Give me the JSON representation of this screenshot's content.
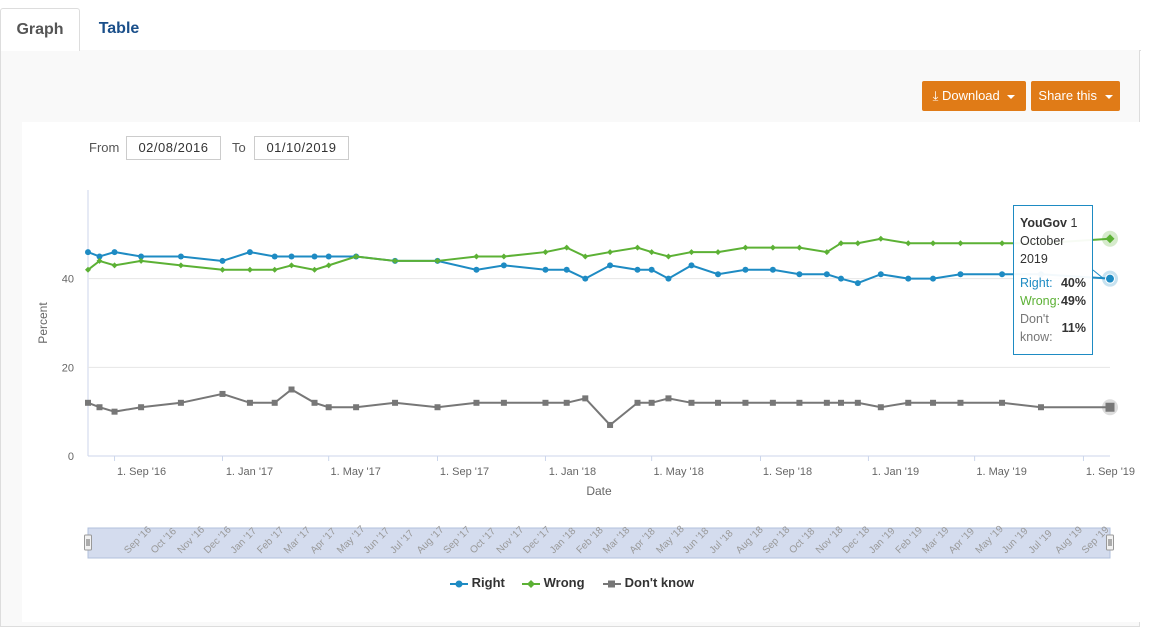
{
  "tabs": [
    {
      "label": "Graph"
    },
    {
      "label": "Table"
    }
  ],
  "toolbar": {
    "download_label": "Download",
    "share_label": "Share this"
  },
  "range": {
    "from_label": "From",
    "from_value": "02/08/2016",
    "to_label": "To",
    "to_value": "01/10/2019"
  },
  "tooltip": {
    "source": "YouGov",
    "date": "1 October 2019",
    "rows": [
      {
        "label": "Right:",
        "value": "40%",
        "color": "#1e8bc3"
      },
      {
        "label": "Wrong:",
        "value": "49%",
        "color": "#5cb135"
      },
      {
        "label": "Don't know:",
        "value": "11%",
        "color": "#777777"
      }
    ]
  },
  "navigator_labels": [
    "Sep '16",
    "Oct '16",
    "Nov '16",
    "Dec '16",
    "Jan '17",
    "Feb '17",
    "Mar '17",
    "Apr '17",
    "May '17",
    "Jun '17",
    "Jul '17",
    "Aug '17",
    "Sep '17",
    "Oct '17",
    "Nov '17",
    "Dec '17",
    "Jan '18",
    "Feb '18",
    "Mar '18",
    "Apr '18",
    "May '18",
    "Jun '18",
    "Jul '18",
    "Aug '18",
    "Sep '18",
    "Oct '18",
    "Nov '18",
    "Dec '18",
    "Jan '19",
    "Feb '19",
    "Mar '19",
    "Apr '19",
    "May '19",
    "Jun '19",
    "Jul '19",
    "Aug '19",
    "Sep '19"
  ],
  "chart_data": {
    "type": "line",
    "xlabel": "Date",
    "ylabel": "Percent",
    "ylim": [
      0,
      60
    ],
    "yticks": [
      0,
      20,
      40
    ],
    "xticks": [
      "1. Sep '16",
      "1. Jan '17",
      "1. May '17",
      "1. Sep '17",
      "1. Jan '18",
      "1. May '18",
      "1. Sep '18",
      "1. Jan '19",
      "1. May '19",
      "1. Sep '19"
    ],
    "xtick_dates": [
      "2016-09-01",
      "2017-01-01",
      "2017-05-01",
      "2017-09-01",
      "2018-01-01",
      "2018-05-01",
      "2018-09-01",
      "2019-01-01",
      "2019-05-01",
      "2019-09-01"
    ],
    "xrange": [
      "2016-08-02",
      "2019-10-01"
    ],
    "grid": true,
    "legend_position": "bottom-center",
    "series": [
      {
        "name": "Right",
        "color": "#1e8bc3",
        "marker": "circle",
        "x": [
          "2016-08-02",
          "2016-08-15",
          "2016-09-01",
          "2016-10-01",
          "2016-11-15",
          "2017-01-01",
          "2017-02-01",
          "2017-03-01",
          "2017-03-20",
          "2017-04-15",
          "2017-05-01",
          "2017-06-01",
          "2017-07-15",
          "2017-09-01",
          "2017-10-15",
          "2017-11-15",
          "2018-01-01",
          "2018-01-25",
          "2018-02-15",
          "2018-03-15",
          "2018-04-15",
          "2018-05-01",
          "2018-05-20",
          "2018-06-15",
          "2018-07-15",
          "2018-08-15",
          "2018-09-15",
          "2018-10-15",
          "2018-11-15",
          "2018-12-01",
          "2018-12-20",
          "2019-01-15",
          "2019-02-15",
          "2019-03-15",
          "2019-04-15",
          "2019-06-01",
          "2019-07-15",
          "2019-10-01"
        ],
        "y": [
          46,
          45,
          46,
          45,
          45,
          44,
          46,
          45,
          45,
          45,
          45,
          45,
          44,
          44,
          42,
          43,
          42,
          42,
          40,
          43,
          42,
          42,
          40,
          43,
          41,
          42,
          42,
          41,
          41,
          40,
          39,
          41,
          40,
          40,
          41,
          41,
          41,
          40
        ]
      },
      {
        "name": "Wrong",
        "color": "#5cb135",
        "marker": "diamond",
        "x": [
          "2016-08-02",
          "2016-08-15",
          "2016-09-01",
          "2016-10-01",
          "2016-11-15",
          "2017-01-01",
          "2017-02-01",
          "2017-03-01",
          "2017-03-20",
          "2017-04-15",
          "2017-05-01",
          "2017-06-01",
          "2017-07-15",
          "2017-09-01",
          "2017-10-15",
          "2017-11-15",
          "2018-01-01",
          "2018-01-25",
          "2018-02-15",
          "2018-03-15",
          "2018-04-15",
          "2018-05-01",
          "2018-05-20",
          "2018-06-15",
          "2018-07-15",
          "2018-08-15",
          "2018-09-15",
          "2018-10-15",
          "2018-11-15",
          "2018-12-01",
          "2018-12-20",
          "2019-01-15",
          "2019-02-15",
          "2019-03-15",
          "2019-04-15",
          "2019-06-01",
          "2019-07-15",
          "2019-10-01"
        ],
        "y": [
          42,
          44,
          43,
          44,
          43,
          42,
          42,
          42,
          43,
          42,
          43,
          45,
          44,
          44,
          45,
          45,
          46,
          47,
          45,
          46,
          47,
          46,
          45,
          46,
          46,
          47,
          47,
          47,
          46,
          48,
          48,
          49,
          48,
          48,
          48,
          48,
          48,
          49
        ]
      },
      {
        "name": "Don't know",
        "color": "#777777",
        "marker": "square",
        "x": [
          "2016-08-02",
          "2016-08-15",
          "2016-09-01",
          "2016-10-01",
          "2016-11-15",
          "2017-01-01",
          "2017-02-01",
          "2017-03-01",
          "2017-03-20",
          "2017-04-15",
          "2017-05-01",
          "2017-06-01",
          "2017-07-15",
          "2017-09-01",
          "2017-10-15",
          "2017-11-15",
          "2018-01-01",
          "2018-01-25",
          "2018-02-15",
          "2018-03-15",
          "2018-04-15",
          "2018-05-01",
          "2018-05-20",
          "2018-06-15",
          "2018-07-15",
          "2018-08-15",
          "2018-09-15",
          "2018-10-15",
          "2018-11-15",
          "2018-12-01",
          "2018-12-20",
          "2019-01-15",
          "2019-02-15",
          "2019-03-15",
          "2019-04-15",
          "2019-06-01",
          "2019-07-15",
          "2019-10-01"
        ],
        "y": [
          12,
          11,
          10,
          11,
          12,
          14,
          12,
          12,
          15,
          12,
          11,
          11,
          12,
          11,
          12,
          12,
          12,
          12,
          13,
          7,
          12,
          12,
          13,
          12,
          12,
          12,
          12,
          12,
          12,
          12,
          12,
          11,
          12,
          12,
          12,
          12,
          11,
          11
        ]
      }
    ]
  }
}
